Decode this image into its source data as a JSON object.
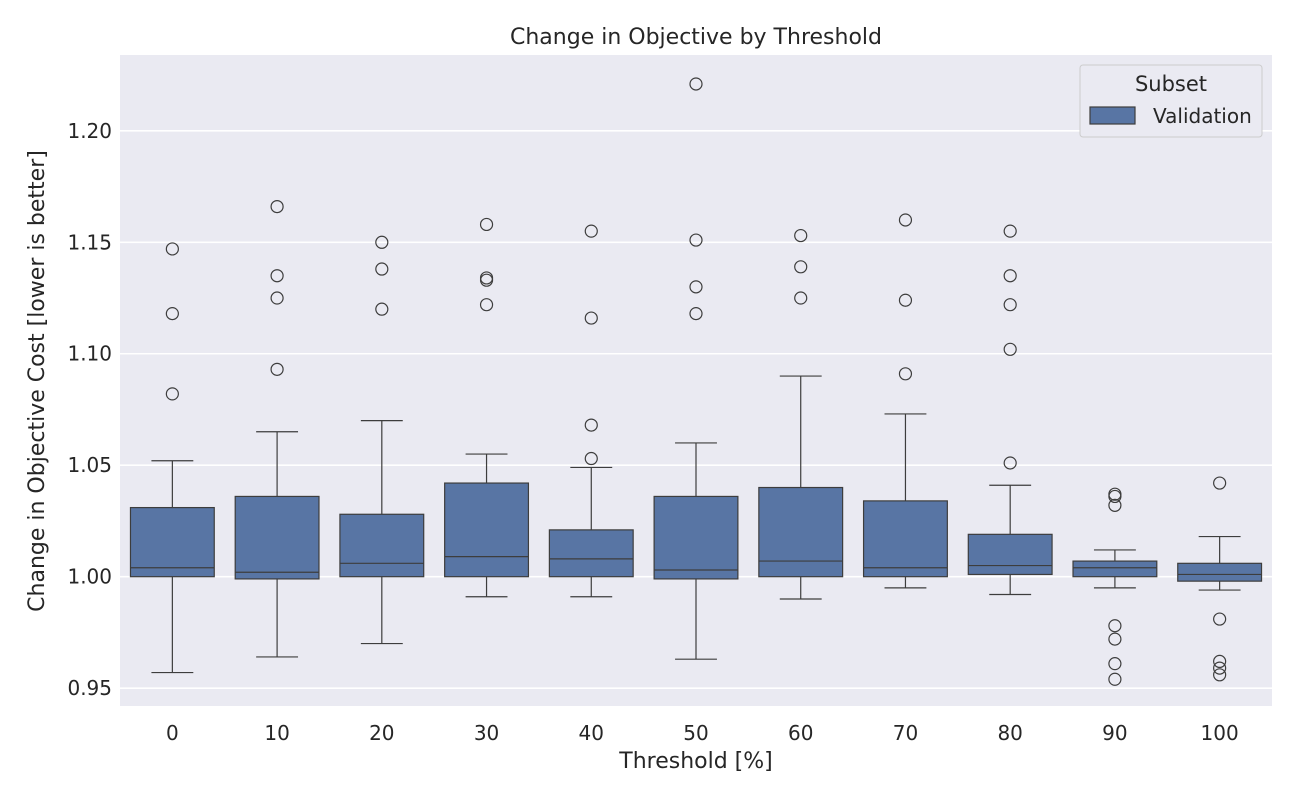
{
  "chart_data": {
    "type": "box",
    "title": "Change in Objective by Threshold",
    "xlabel": "Threshold [%]",
    "ylabel": "Change in Objective Cost [lower is better]",
    "ylim": [
      0.942,
      1.234
    ],
    "yticks": [
      0.95,
      1.0,
      1.05,
      1.1,
      1.15,
      1.2
    ],
    "ytick_labels": [
      "0.95",
      "1.00",
      "1.05",
      "1.10",
      "1.15",
      "1.20"
    ],
    "grid": true,
    "legend": {
      "title": "Subset",
      "entries": [
        "Validation"
      ],
      "placement": "top-right"
    },
    "colors": {
      "box": "#5875a4",
      "background": "#eaeaf2",
      "grid": "#ffffff",
      "line": "#3d3d3d"
    },
    "categories": [
      "0",
      "10",
      "20",
      "30",
      "40",
      "50",
      "60",
      "70",
      "80",
      "90",
      "100"
    ],
    "series": [
      {
        "name": "Validation",
        "boxes": [
          {
            "whisker_low": 0.957,
            "q1": 1.0,
            "median": 1.004,
            "q3": 1.031,
            "whisker_high": 1.052,
            "outliers": [
              1.082,
              1.118,
              1.147
            ]
          },
          {
            "whisker_low": 0.964,
            "q1": 0.999,
            "median": 1.002,
            "q3": 1.036,
            "whisker_high": 1.065,
            "outliers": [
              1.093,
              1.125,
              1.135,
              1.166
            ]
          },
          {
            "whisker_low": 0.97,
            "q1": 1.0,
            "median": 1.006,
            "q3": 1.028,
            "whisker_high": 1.07,
            "outliers": [
              1.12,
              1.138,
              1.15
            ]
          },
          {
            "whisker_low": 0.991,
            "q1": 1.0,
            "median": 1.009,
            "q3": 1.042,
            "whisker_high": 1.055,
            "outliers": [
              1.122,
              1.133,
              1.134,
              1.158
            ]
          },
          {
            "whisker_low": 0.991,
            "q1": 1.0,
            "median": 1.008,
            "q3": 1.021,
            "whisker_high": 1.049,
            "outliers": [
              1.053,
              1.068,
              1.116,
              1.155
            ]
          },
          {
            "whisker_low": 0.963,
            "q1": 0.999,
            "median": 1.003,
            "q3": 1.036,
            "whisker_high": 1.06,
            "outliers": [
              1.118,
              1.13,
              1.151,
              1.221
            ]
          },
          {
            "whisker_low": 0.99,
            "q1": 1.0,
            "median": 1.007,
            "q3": 1.04,
            "whisker_high": 1.09,
            "outliers": [
              1.125,
              1.139,
              1.153
            ]
          },
          {
            "whisker_low": 0.995,
            "q1": 1.0,
            "median": 1.004,
            "q3": 1.034,
            "whisker_high": 1.073,
            "outliers": [
              1.091,
              1.124,
              1.16
            ]
          },
          {
            "whisker_low": 0.992,
            "q1": 1.001,
            "median": 1.005,
            "q3": 1.019,
            "whisker_high": 1.041,
            "outliers": [
              1.051,
              1.102,
              1.122,
              1.135,
              1.155
            ]
          },
          {
            "whisker_low": 0.995,
            "q1": 1.0,
            "median": 1.004,
            "q3": 1.007,
            "whisker_high": 1.012,
            "outliers": [
              0.954,
              0.961,
              0.972,
              0.978,
              1.032,
              1.036,
              1.037
            ]
          },
          {
            "whisker_low": 0.994,
            "q1": 0.998,
            "median": 1.001,
            "q3": 1.006,
            "whisker_high": 1.018,
            "outliers": [
              0.956,
              0.959,
              0.962,
              0.981,
              1.042
            ]
          }
        ]
      }
    ]
  }
}
